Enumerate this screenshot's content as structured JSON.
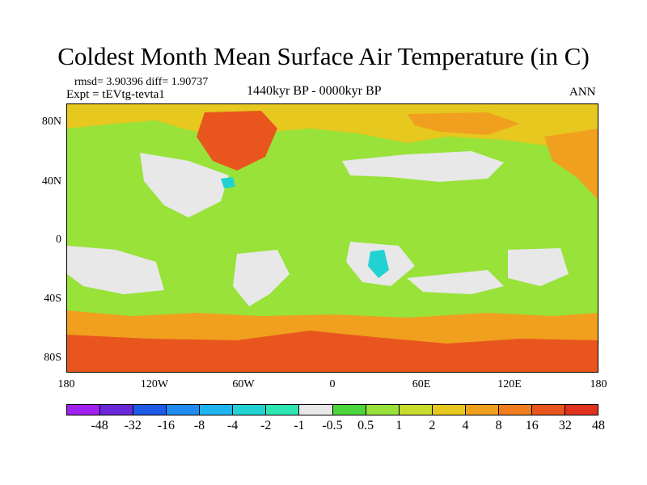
{
  "title": "Coldest Month Mean Surface Air Temperature (in C)",
  "stats": "rmsd= 3.90396 diff= 1.90737",
  "expt": "Expt = tEVtg-tevta1",
  "period": "1440kyr BP - 0000kyr BP",
  "season": "ANN",
  "lat_ticks": [
    "80N",
    "40N",
    "0",
    "40S",
    "80S"
  ],
  "lon_ticks": [
    "180",
    "120W",
    "60W",
    "0",
    "60E",
    "120E",
    "180"
  ],
  "colorbar": {
    "colors": [
      "#a020f0",
      "#6a28d8",
      "#1e5ae8",
      "#1e8cf0",
      "#1eb4f0",
      "#22d2d2",
      "#2ee6b4",
      "#e8e8e8",
      "#4cd63c",
      "#98e23a",
      "#c8dc2e",
      "#e6c81e",
      "#f0a01e",
      "#f07e1e",
      "#e8561e",
      "#e0321e"
    ],
    "labels": [
      "-48",
      "-32",
      "-16",
      "-8",
      "-4",
      "-2",
      "-1",
      "-0.5",
      "0.5",
      "1",
      "2",
      "4",
      "8",
      "16",
      "32",
      "48"
    ]
  },
  "field_colors": {
    "ocean": "#98e23a",
    "near_zero": "#e8e8e8",
    "warm": "#e6c81e",
    "warmer": "#f0a01e",
    "hot": "#e8561e",
    "cool": "#4cd63c",
    "cold": "#22d2d2"
  }
}
